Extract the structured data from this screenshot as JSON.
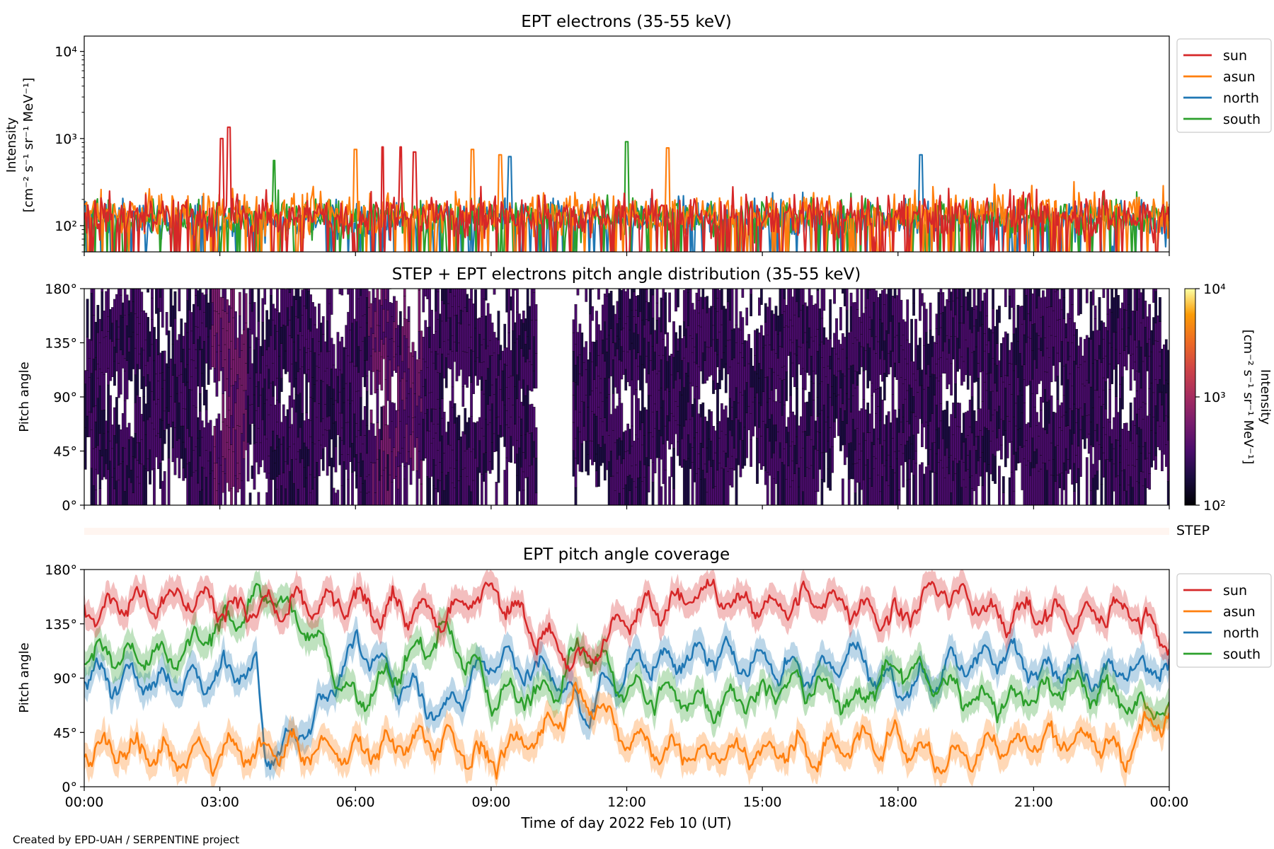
{
  "footer": "Created by EPD-UAH / SERPENTINE project",
  "colors": {
    "sun": "#d62728",
    "asun": "#ff7f0e",
    "north": "#1f77b4",
    "south": "#2ca02c",
    "step_band": "#fff5f0"
  },
  "chart_data": [
    {
      "type": "line",
      "title": "EPT electrons (35-55 keV)",
      "ylabel": [
        "Intensity",
        "[cm⁻² s⁻¹ sr⁻¹ MeV⁻¹]"
      ],
      "yscale": "log",
      "ylim": [
        50,
        15000
      ],
      "yticks": [
        "10²",
        "10³",
        "10⁴"
      ],
      "legend_position": "top-right",
      "x_units": "hours since 2022-02-10 00:00 UT",
      "series": [
        {
          "name": "sun",
          "color": "#d62728",
          "baseline": 130,
          "spread": 0.38,
          "events": [
            {
              "t": 3.2,
              "value": 1350
            },
            {
              "t": 3.05,
              "value": 1000
            },
            {
              "t": 6.6,
              "value": 800
            },
            {
              "t": 7.0,
              "value": 800
            },
            {
              "t": 7.3,
              "value": 700
            }
          ]
        },
        {
          "name": "asun",
          "color": "#ff7f0e",
          "baseline": 140,
          "spread": 0.36,
          "events": [
            {
              "t": 6.0,
              "value": 750
            },
            {
              "t": 8.6,
              "value": 750
            },
            {
              "t": 12.9,
              "value": 780
            },
            {
              "t": 9.2,
              "value": 650
            }
          ]
        },
        {
          "name": "north",
          "color": "#1f77b4",
          "baseline": 120,
          "spread": 0.33,
          "events": [
            {
              "t": 18.5,
              "value": 650
            },
            {
              "t": 9.4,
              "value": 620
            }
          ]
        },
        {
          "name": "south",
          "color": "#2ca02c",
          "baseline": 125,
          "spread": 0.33,
          "events": [
            {
              "t": 12.0,
              "value": 920
            },
            {
              "t": 4.2,
              "value": 560
            }
          ]
        }
      ]
    },
    {
      "type": "heatmap",
      "title": "STEP + EPT electrons pitch angle distribution (35-55 keV)",
      "ylabel": "Pitch angle",
      "ylim": [
        0,
        180
      ],
      "yticks": [
        "0°",
        "45°",
        "90°",
        "135°",
        "180°"
      ],
      "colormap": "inferno",
      "colorbar": {
        "label": [
          "Intensity",
          "[cm⁻² s⁻¹ sr⁻¹ MeV⁻¹]"
        ],
        "scale": "log",
        "range": [
          100,
          10000
        ],
        "ticks": [
          "10²",
          "10³",
          "10⁴"
        ]
      },
      "typical_intensity": [
        100,
        600
      ],
      "gap_hours": [
        10.0,
        10.8
      ]
    },
    {
      "type": "bar",
      "label": "STEP",
      "color": "#fff5f0"
    },
    {
      "type": "area",
      "title": "EPT pitch angle coverage",
      "ylabel": "Pitch angle",
      "ylim": [
        0,
        180
      ],
      "yticks": [
        "0°",
        "45°",
        "90°",
        "135°",
        "180°"
      ],
      "legend_position": "top-right",
      "x_units": "hours since 2022-02-10 00:00 UT",
      "series": [
        {
          "name": "sun",
          "color": "#d62728",
          "knots": [
            [
              0,
              150
            ],
            [
              2,
              158
            ],
            [
              4,
              145
            ],
            [
              6,
              152
            ],
            [
              8,
              140
            ],
            [
              9,
              165
            ],
            [
              10.3,
              120
            ],
            [
              11,
              100
            ],
            [
              12,
              140
            ],
            [
              13.5,
              160
            ],
            [
              15,
              150
            ],
            [
              16.5,
              155
            ],
            [
              18,
              140
            ],
            [
              19,
              165
            ],
            [
              20,
              145
            ],
            [
              22,
              140
            ],
            [
              23,
              150
            ],
            [
              24,
              120
            ]
          ]
        },
        {
          "name": "asun",
          "color": "#ff7f0e",
          "knots": [
            [
              0,
              35
            ],
            [
              2,
              25
            ],
            [
              4,
              30
            ],
            [
              6,
              30
            ],
            [
              8,
              40
            ],
            [
              9,
              20
            ],
            [
              10.3,
              50
            ],
            [
              11,
              80
            ],
            [
              12,
              40
            ],
            [
              13.5,
              25
            ],
            [
              15,
              30
            ],
            [
              16.5,
              30
            ],
            [
              18,
              40
            ],
            [
              19,
              20
            ],
            [
              20,
              35
            ],
            [
              22,
              40
            ],
            [
              23,
              30
            ],
            [
              24,
              60
            ]
          ]
        },
        {
          "name": "north",
          "color": "#1f77b4",
          "knots": [
            [
              0,
              90
            ],
            [
              2,
              85
            ],
            [
              3.8,
              100
            ],
            [
              4,
              20
            ],
            [
              5,
              55
            ],
            [
              6,
              115
            ],
            [
              8,
              60
            ],
            [
              9,
              110
            ],
            [
              10.5,
              90
            ],
            [
              11,
              60
            ],
            [
              12,
              100
            ],
            [
              14,
              110
            ],
            [
              16,
              95
            ],
            [
              17,
              110
            ],
            [
              18,
              80
            ],
            [
              20,
              110
            ],
            [
              22,
              95
            ],
            [
              24,
              100
            ]
          ]
        },
        {
          "name": "south",
          "color": "#2ca02c",
          "knots": [
            [
              0,
              110
            ],
            [
              2,
              105
            ],
            [
              4,
              160
            ],
            [
              5,
              130
            ],
            [
              6,
              70
            ],
            [
              8,
              130
            ],
            [
              9,
              75
            ],
            [
              10.5,
              80
            ],
            [
              11,
              120
            ],
            [
              12,
              80
            ],
            [
              14,
              70
            ],
            [
              16,
              85
            ],
            [
              17,
              70
            ],
            [
              18,
              100
            ],
            [
              20,
              70
            ],
            [
              22,
              85
            ],
            [
              24,
              60
            ]
          ]
        }
      ]
    }
  ],
  "xaxis": {
    "label": "Time of day 2022 Feb 10 (UT)",
    "range": [
      0,
      24
    ],
    "ticks": [
      0,
      3,
      6,
      9,
      12,
      15,
      18,
      21,
      24
    ],
    "ticklabels": [
      "00:00",
      "03:00",
      "06:00",
      "09:00",
      "12:00",
      "15:00",
      "18:00",
      "21:00",
      "00:00"
    ]
  }
}
